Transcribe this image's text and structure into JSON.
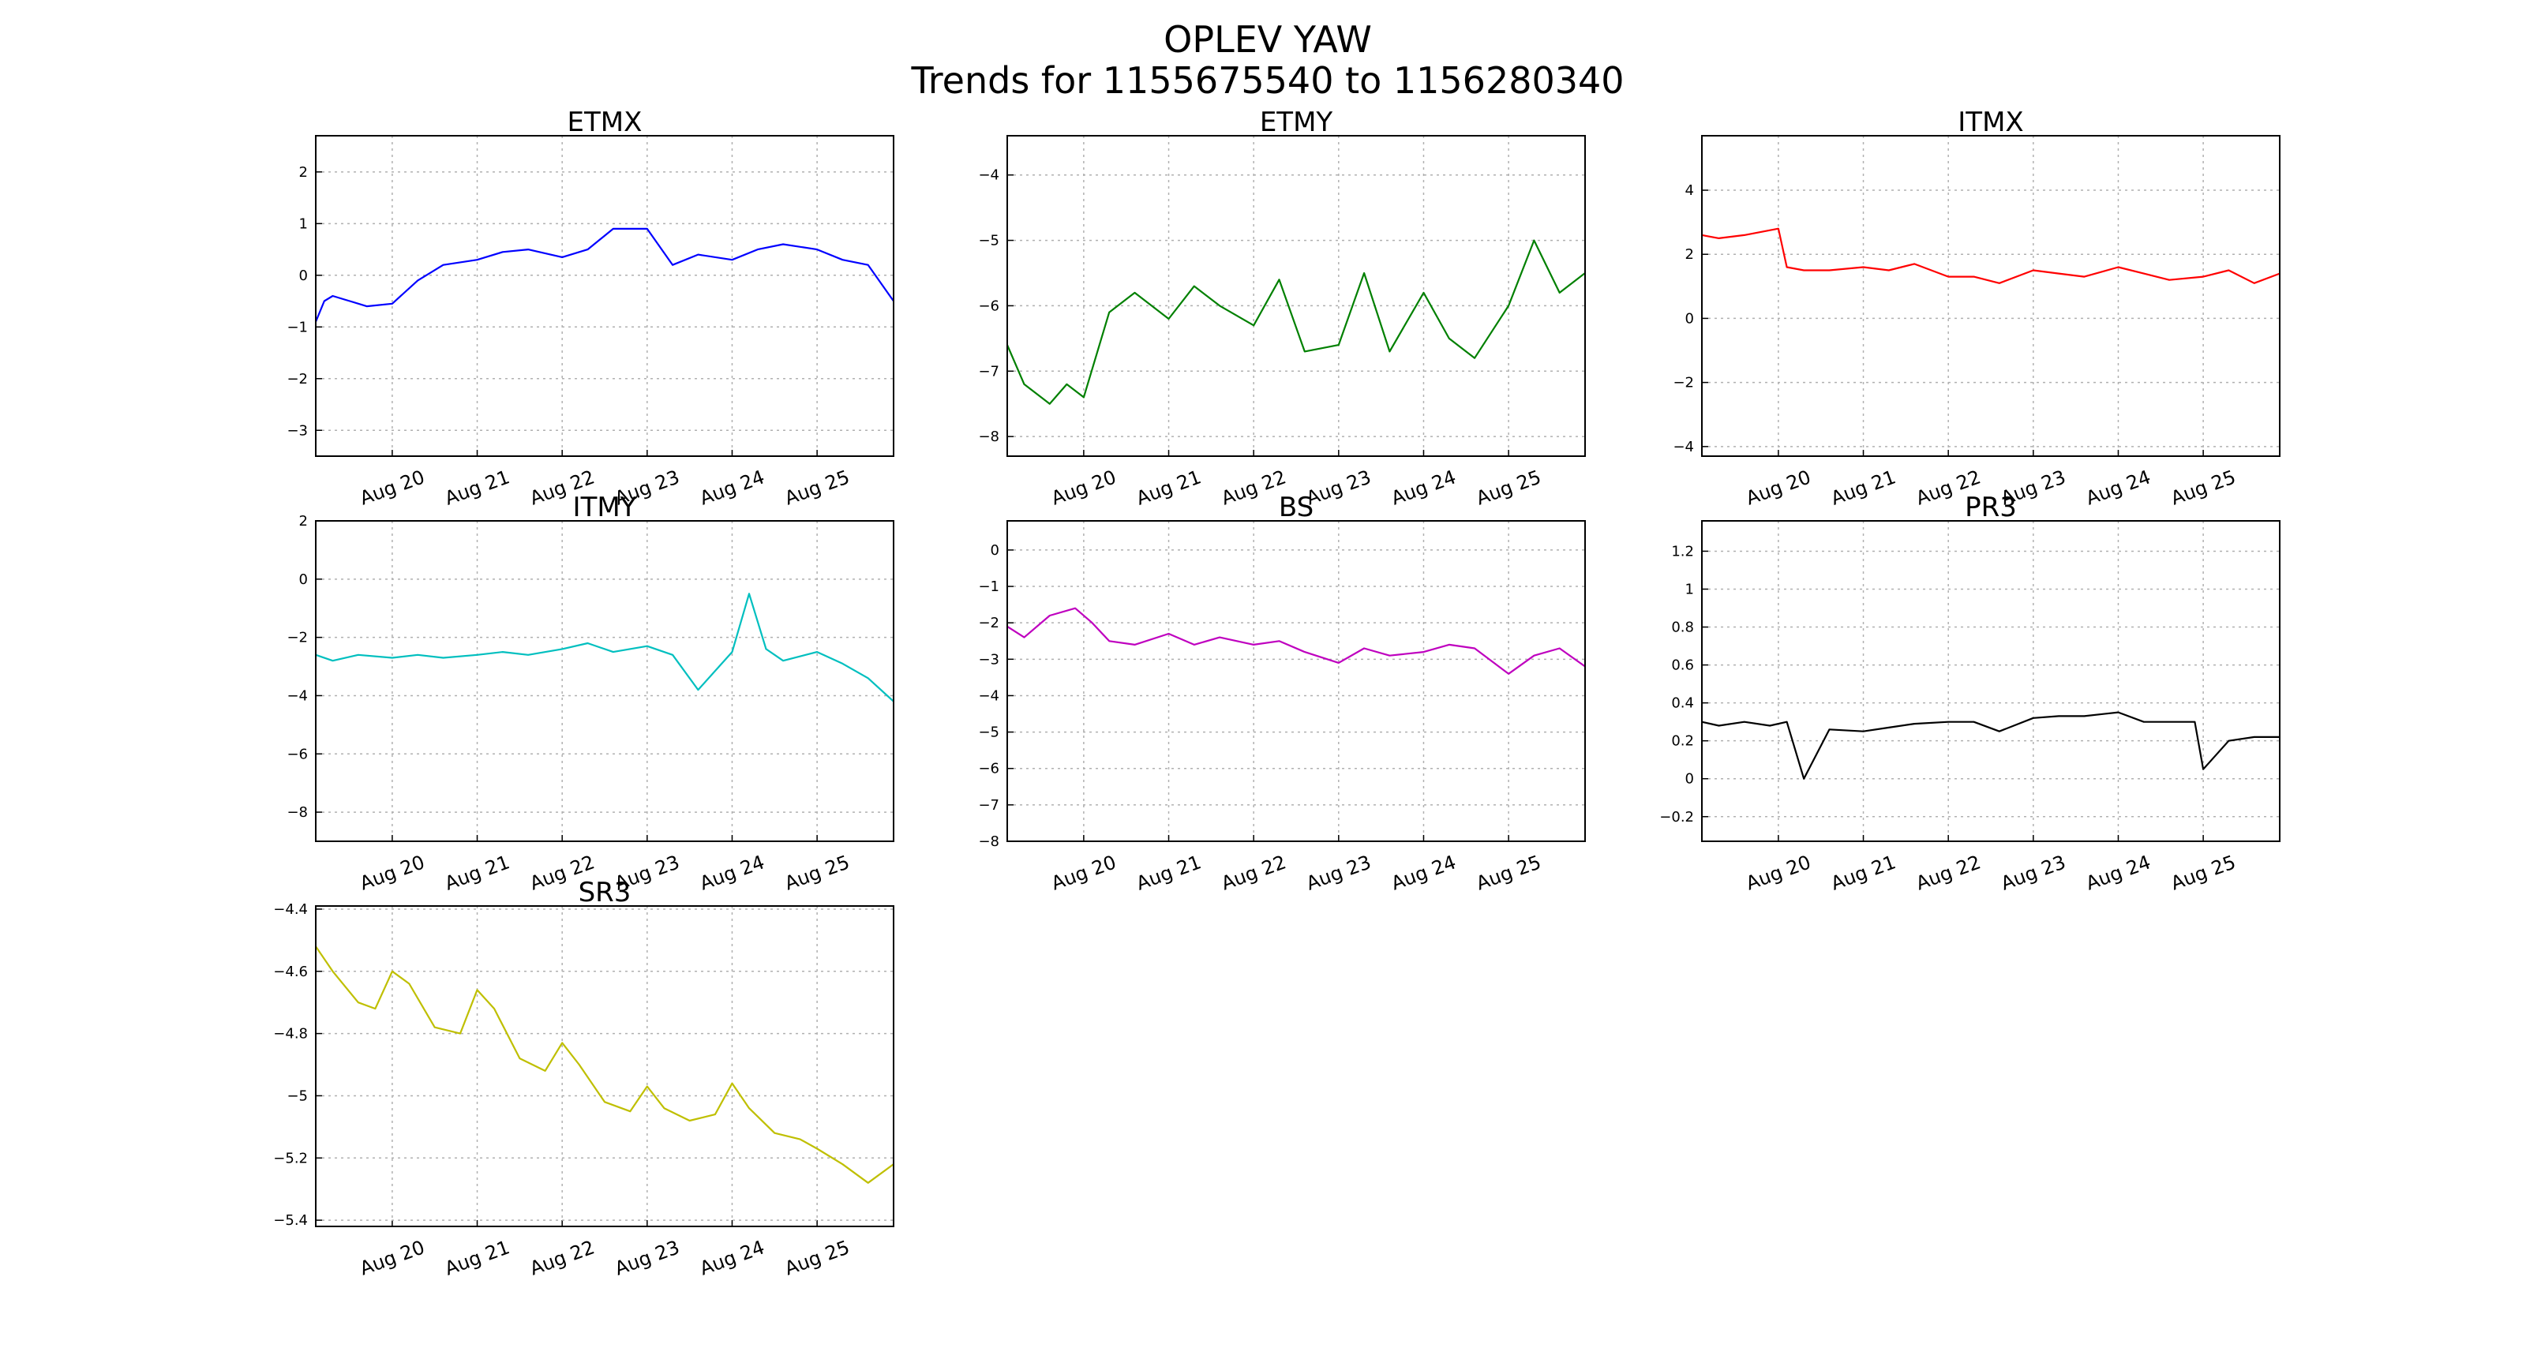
{
  "figure": {
    "title_line1": "OPLEV YAW",
    "title_line2": "Trends for 1155675540 to 1156280340"
  },
  "chart_data": [
    {
      "type": "line",
      "title": "ETMX",
      "color": "#0000ff",
      "x_ticks": [
        "Aug 20",
        "Aug 21",
        "Aug 22",
        "Aug 23",
        "Aug 24",
        "Aug 25"
      ],
      "x_range_days": [
        19.1,
        25.9
      ],
      "ylim": [
        -3.5,
        2.7
      ],
      "y_ticks": [
        2,
        1,
        0,
        -1,
        -2,
        -3
      ],
      "grid": true,
      "x": [
        19.1,
        19.2,
        19.3,
        19.5,
        19.7,
        20.0,
        20.3,
        20.6,
        21.0,
        21.3,
        21.6,
        22.0,
        22.3,
        22.6,
        23.0,
        23.3,
        23.6,
        24.0,
        24.3,
        24.6,
        25.0,
        25.3,
        25.6,
        25.9
      ],
      "y": [
        -0.9,
        -0.5,
        -0.4,
        -0.5,
        -0.6,
        -0.55,
        -0.1,
        0.2,
        0.3,
        0.45,
        0.5,
        0.35,
        0.5,
        0.9,
        0.9,
        0.2,
        0.4,
        0.3,
        0.5,
        0.6,
        0.5,
        0.3,
        0.2,
        -0.5
      ]
    },
    {
      "type": "line",
      "title": "ETMY",
      "color": "#008000",
      "x_ticks": [
        "Aug 20",
        "Aug 21",
        "Aug 22",
        "Aug 23",
        "Aug 24",
        "Aug 25"
      ],
      "x_range_days": [
        19.1,
        25.9
      ],
      "ylim": [
        -8.3,
        -3.4
      ],
      "y_ticks": [
        -4,
        -5,
        -6,
        -7,
        -8
      ],
      "grid": true,
      "x": [
        19.1,
        19.3,
        19.6,
        19.8,
        20.0,
        20.3,
        20.6,
        21.0,
        21.3,
        21.6,
        22.0,
        22.3,
        22.6,
        23.0,
        23.3,
        23.6,
        24.0,
        24.3,
        24.6,
        25.0,
        25.3,
        25.6,
        25.9
      ],
      "y": [
        -6.6,
        -7.2,
        -7.5,
        -7.2,
        -7.4,
        -6.1,
        -5.8,
        -6.2,
        -5.7,
        -6.0,
        -6.3,
        -5.6,
        -6.7,
        -6.6,
        -5.5,
        -6.7,
        -5.8,
        -6.5,
        -6.8,
        -6.0,
        -5.0,
        -5.8,
        -5.5
      ]
    },
    {
      "type": "line",
      "title": "ITMX",
      "color": "#ff0000",
      "x_ticks": [
        "Aug 20",
        "Aug 21",
        "Aug 22",
        "Aug 23",
        "Aug 24",
        "Aug 25"
      ],
      "x_range_days": [
        19.1,
        25.9
      ],
      "ylim": [
        -4.3,
        5.7
      ],
      "y_ticks": [
        4,
        2,
        0,
        -2,
        -4
      ],
      "grid": true,
      "x": [
        19.1,
        19.3,
        19.6,
        20.0,
        20.1,
        20.3,
        20.6,
        21.0,
        21.3,
        21.6,
        22.0,
        22.3,
        22.6,
        23.0,
        23.3,
        23.6,
        24.0,
        24.3,
        24.6,
        25.0,
        25.3,
        25.6,
        25.9
      ],
      "y": [
        2.6,
        2.5,
        2.6,
        2.8,
        1.6,
        1.5,
        1.5,
        1.6,
        1.5,
        1.7,
        1.3,
        1.3,
        1.1,
        1.5,
        1.4,
        1.3,
        1.6,
        1.4,
        1.2,
        1.3,
        1.5,
        1.1,
        1.4
      ]
    },
    {
      "type": "line",
      "title": "ITMY",
      "color": "#00bfbf",
      "x_ticks": [
        "Aug 20",
        "Aug 21",
        "Aug 22",
        "Aug 23",
        "Aug 24",
        "Aug 25"
      ],
      "x_range_days": [
        19.1,
        25.9
      ],
      "ylim": [
        -9.0,
        2.0
      ],
      "y_ticks": [
        2,
        0,
        -2,
        -4,
        -6,
        -8
      ],
      "grid": true,
      "x": [
        19.1,
        19.3,
        19.6,
        20.0,
        20.3,
        20.6,
        21.0,
        21.3,
        21.6,
        22.0,
        22.3,
        22.6,
        23.0,
        23.3,
        23.6,
        24.0,
        24.2,
        24.4,
        24.6,
        25.0,
        25.3,
        25.6,
        25.9
      ],
      "y": [
        -2.6,
        -2.8,
        -2.6,
        -2.7,
        -2.6,
        -2.7,
        -2.6,
        -2.5,
        -2.6,
        -2.4,
        -2.2,
        -2.5,
        -2.3,
        -2.6,
        -3.8,
        -2.5,
        -0.5,
        -2.4,
        -2.8,
        -2.5,
        -2.9,
        -3.4,
        -4.2
      ]
    },
    {
      "type": "line",
      "title": "BS",
      "color": "#bf00bf",
      "x_ticks": [
        "Aug 20",
        "Aug 21",
        "Aug 22",
        "Aug 23",
        "Aug 24",
        "Aug 25"
      ],
      "x_range_days": [
        19.1,
        25.9
      ],
      "ylim": [
        -8.0,
        0.8
      ],
      "y_ticks": [
        0,
        -1,
        -2,
        -3,
        -4,
        -5,
        -6,
        -7,
        -8
      ],
      "grid": true,
      "x": [
        19.1,
        19.3,
        19.6,
        19.9,
        20.1,
        20.3,
        20.6,
        21.0,
        21.3,
        21.6,
        22.0,
        22.3,
        22.6,
        23.0,
        23.3,
        23.6,
        24.0,
        24.3,
        24.6,
        25.0,
        25.3,
        25.6,
        25.9
      ],
      "y": [
        -2.1,
        -2.4,
        -1.8,
        -1.6,
        -2.0,
        -2.5,
        -2.6,
        -2.3,
        -2.6,
        -2.4,
        -2.6,
        -2.5,
        -2.8,
        -3.1,
        -2.7,
        -2.9,
        -2.8,
        -2.6,
        -2.7,
        -3.4,
        -2.9,
        -2.7,
        -3.2
      ]
    },
    {
      "type": "line",
      "title": "PR3",
      "color": "#000000",
      "x_ticks": [
        "Aug 20",
        "Aug 21",
        "Aug 22",
        "Aug 23",
        "Aug 24",
        "Aug 25"
      ],
      "x_range_days": [
        19.1,
        25.9
      ],
      "ylim": [
        -0.33,
        1.36
      ],
      "y_ticks": [
        1.2,
        1.0,
        0.8,
        0.6,
        0.4,
        0.2,
        0.0,
        -0.2
      ],
      "grid": true,
      "x": [
        19.1,
        19.3,
        19.6,
        19.9,
        20.1,
        20.3,
        20.6,
        21.0,
        21.3,
        21.6,
        22.0,
        22.3,
        22.6,
        23.0,
        23.3,
        23.6,
        24.0,
        24.3,
        24.6,
        24.9,
        25.0,
        25.3,
        25.6,
        25.9
      ],
      "y": [
        0.3,
        0.28,
        0.3,
        0.28,
        0.3,
        0.0,
        0.26,
        0.25,
        0.27,
        0.29,
        0.3,
        0.3,
        0.25,
        0.32,
        0.33,
        0.33,
        0.35,
        0.3,
        0.3,
        0.3,
        0.05,
        0.2,
        0.22,
        0.22
      ]
    },
    {
      "type": "line",
      "title": "SR3",
      "color": "#bfbf00",
      "x_ticks": [
        "Aug 20",
        "Aug 21",
        "Aug 22",
        "Aug 23",
        "Aug 24",
        "Aug 25"
      ],
      "x_range_days": [
        19.1,
        25.9
      ],
      "ylim": [
        -5.42,
        -4.39
      ],
      "y_ticks": [
        -4.4,
        -4.6,
        -4.8,
        -5.0,
        -5.2,
        -5.4
      ],
      "grid": true,
      "x": [
        19.1,
        19.3,
        19.6,
        19.8,
        20.0,
        20.2,
        20.5,
        20.8,
        21.0,
        21.2,
        21.5,
        21.8,
        22.0,
        22.2,
        22.5,
        22.8,
        23.0,
        23.2,
        23.5,
        23.8,
        24.0,
        24.2,
        24.5,
        24.8,
        25.0,
        25.3,
        25.6,
        25.9
      ],
      "y": [
        -4.52,
        -4.6,
        -4.7,
        -4.72,
        -4.6,
        -4.64,
        -4.78,
        -4.8,
        -4.66,
        -4.72,
        -4.88,
        -4.92,
        -4.83,
        -4.9,
        -5.02,
        -5.05,
        -4.97,
        -5.04,
        -5.08,
        -5.06,
        -4.96,
        -5.04,
        -5.12,
        -5.14,
        -5.17,
        -5.22,
        -5.28,
        -5.22
      ]
    }
  ]
}
